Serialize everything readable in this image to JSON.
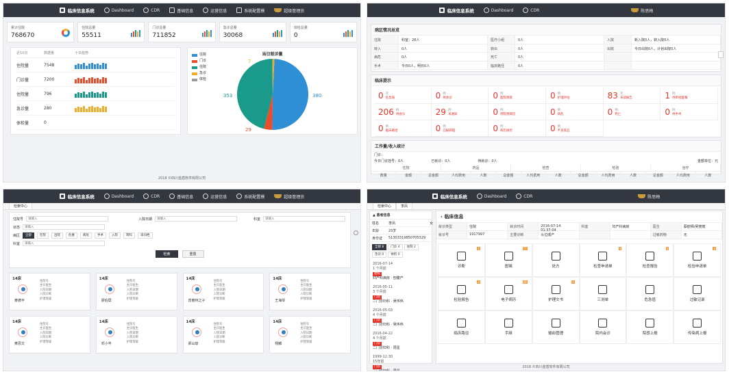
{
  "brand": "临床信息系统",
  "footer": "2018 ©四川蓝盾软件有限公司",
  "p1": {
    "nav": [
      "Dashboard",
      "CDR",
      "基础信息",
      "运营信息",
      "系统配置模"
    ],
    "user": "超级管理员",
    "stats": [
      {
        "label": "累计住院",
        "value": "768670"
      },
      {
        "label": "住院总量",
        "value": "55511"
      },
      {
        "label": "门诊总量",
        "value": "711852"
      },
      {
        "label": "急诊总量",
        "value": "30068"
      },
      {
        "label": "体检总量",
        "value": "0"
      }
    ],
    "list_head": [
      "近10日",
      "数据量",
      "十日趋势"
    ],
    "list_rows": [
      {
        "name": "住院量",
        "count": "7548",
        "color": "#2f8fd6"
      },
      {
        "name": "门诊量",
        "count": "7200",
        "color": "#e84d2c"
      },
      {
        "name": "住院量",
        "count": "796",
        "color": "#1a9a8a"
      },
      {
        "name": "急诊量",
        "count": "280",
        "color": "#f0ad2b"
      },
      {
        "name": "体检量",
        "count": "0",
        "color": "#999999"
      }
    ],
    "pie_title": "当日就诊量",
    "legend": [
      "住院",
      "门诊",
      "住院",
      "急诊",
      "体检"
    ],
    "pie_labels": {
      "a": "380",
      "b": "353",
      "c": "29",
      "d": "7"
    }
  },
  "chart_data": {
    "type": "pie",
    "title": "当日就诊量",
    "categories": [
      "住院",
      "门诊",
      "住院",
      "急诊",
      "体检"
    ],
    "values": [
      380,
      29,
      353,
      7,
      0
    ],
    "colors": [
      "#2f8fd6",
      "#e84d2c",
      "#1a9a8a",
      "#f0ad2b",
      "#999999"
    ]
  },
  "p2": {
    "nav": [
      "Dashboard",
      "CDR"
    ],
    "user": "陈思梅",
    "sec1": "病区情况总览",
    "info": [
      [
        "住院",
        "科室：28人",
        "医疗小组",
        "0人",
        "入院",
        "新入院0人，转入院0人"
      ],
      [
        "转入",
        "0人",
        "转出",
        "0人",
        "出院",
        "今日出院0人，计划出院0人"
      ],
      [
        "病危",
        "0人",
        "死亡",
        "0人",
        "",
        ""
      ],
      [
        "手术",
        "今日0人，明日0人",
        "临床路径",
        "0人",
        "",
        ""
      ]
    ],
    "sec2": "临床提示",
    "tips": [
      {
        "n": "0",
        "a": "次",
        "b": "危急值"
      },
      {
        "n": "0",
        "a": "例",
        "b": "待会诊"
      },
      {
        "n": "0",
        "a": "例",
        "b": "医院感染"
      },
      {
        "n": "0",
        "a": "例",
        "b": "护理评估"
      },
      {
        "n": "83",
        "a": "次",
        "b": "未读报告"
      },
      {
        "n": "1",
        "a": "例",
        "b": "待审批医嘱"
      },
      {
        "n": "206",
        "a": "例",
        "b": "待会诊"
      },
      {
        "n": "29",
        "a": "例",
        "b": "未通知"
      },
      {
        "n": "0",
        "a": "例",
        "b": "待院感病历"
      },
      {
        "n": "0",
        "a": "例",
        "b": "病危"
      },
      {
        "n": "0",
        "a": "例",
        "b": "死亡"
      },
      {
        "n": "0",
        "a": "例",
        "b": "待手术"
      },
      {
        "n": "0",
        "a": "例",
        "b": "临床路径"
      },
      {
        "n": "0",
        "a": "例",
        "b": "已报病理"
      },
      {
        "n": "0",
        "a": "例",
        "b": "病历质控"
      },
      {
        "n": "0",
        "a": "例",
        "b": "不良反应"
      }
    ],
    "sec3": "工作量/收入统计",
    "w_line1": "门诊：",
    "w_line2a": "今日门诊挂号：0人",
    "w_line2b": "已就诊：0人",
    "w_line2c": "待就诊：0人",
    "w_line2d": "金额单位：元",
    "w_groups": [
      "住院",
      "药品",
      "检查",
      "检验",
      "治疗"
    ],
    "w_cols": [
      "数量",
      "金额",
      "总金额",
      "人均费用",
      "人数",
      "总金额",
      "人均费用",
      "人数",
      "总金额",
      "人均费用",
      "人数",
      "总金额",
      "人均费用",
      "人数"
    ]
  },
  "p3": {
    "nav": [
      "Dashboard",
      "CDR",
      "基础信息",
      "运营信息",
      "系统配置模"
    ],
    "user": "超级管理员",
    "tab": "检索中心",
    "f_labels": [
      "住院号",
      "入院日期",
      "科室",
      "状态",
      "病区"
    ],
    "f_place": "请输入",
    "chips": [
      "全部",
      "在院",
      "出院",
      "危重",
      "病危",
      "手术",
      "入院",
      "转科",
      "未归档"
    ],
    "btn_search": "检索",
    "btn_reset": "重置",
    "beds": [
      {
        "no": "14床",
        "name": "黄德平"
      },
      {
        "no": "14床",
        "name": "廖伯屏"
      },
      {
        "no": "14床",
        "name": "曾丽林之子"
      },
      {
        "no": "14床",
        "name": "王海琴"
      },
      {
        "no": "14床",
        "name": "黄思文"
      },
      {
        "no": "14床",
        "name": "邓小丰"
      },
      {
        "no": "14床",
        "name": "郑山琼"
      },
      {
        "no": "14床",
        "name": "杨麟"
      }
    ],
    "bed_lines": [
      "住院号",
      "主诊医生",
      "入院日期",
      "入院诊断",
      "护理等级"
    ]
  },
  "p4": {
    "user": "陈思梅",
    "nav": [
      "Dashboard",
      "CDR"
    ],
    "tabs": [
      "检索中心",
      "李凤"
    ],
    "side_title": "患者信息",
    "pinfo": [
      [
        "姓名",
        "李凤",
        "女"
      ],
      [
        "年龄",
        "23岁",
        ""
      ],
      [
        "身份证",
        "51303319850705329",
        ""
      ]
    ],
    "filters": [
      "全部 8",
      "门诊 4",
      "住院 2",
      "急诊 0",
      "体检 0"
    ],
    "timeline": [
      {
        "date": "2016-07-14",
        "ago": "1 个月前",
        "tag": "住院",
        "text": "妇产科病房 · 剖腹产"
      },
      {
        "date": "2016-05-11",
        "ago": "3 个月前",
        "tag": "门诊",
        "text": "二门诊妇科 · 吴伟伟"
      },
      {
        "date": "2016-05-03",
        "ago": "4 个月前",
        "tag": "门诊",
        "text": "二门诊妇科 · 吴伟伟"
      },
      {
        "date": "2016-04-22",
        "ago": "4 个月前",
        "tag": "门诊",
        "text": "二门诊妇科 · 周星"
      },
      {
        "date": "1999-12-30",
        "ago": "15年前",
        "tag": "门诊",
        "text": "二门诊妇科 · 周星"
      }
    ],
    "title": "临床信息",
    "grid": [
      [
        "就诊类型",
        "住院",
        "就诊时间",
        "2016-07-14 01:37:04",
        "科室",
        "妇产科病房",
        "医生",
        "蔡欧栖/吴丽丽"
      ],
      [
        "就诊号",
        "1917997",
        "主要诊断",
        "头位顺产",
        "",
        "",
        "过敏药物",
        "无"
      ]
    ],
    "tiles": [
      {
        "label": "诊断",
        "badge": "2"
      },
      {
        "label": "医嘱",
        "badge": "77"
      },
      {
        "label": "处方",
        "badge": ""
      },
      {
        "label": "检查申请单",
        "badge": "3"
      },
      {
        "label": "检查报告",
        "badge": "2"
      },
      {
        "label": "检验申请单",
        "badge": "3"
      },
      {
        "label": "检验报告",
        "badge": "3"
      },
      {
        "label": "电子病历",
        "badge": "20"
      },
      {
        "label": "护理文书",
        "badge": "1"
      },
      {
        "label": "三测单",
        "badge": ""
      },
      {
        "label": "危急值",
        "badge": ""
      },
      {
        "label": "过敏记录",
        "badge": ""
      },
      {
        "label": "临床路径",
        "badge": ""
      },
      {
        "label": "手麻",
        "badge": ""
      },
      {
        "label": "输血管理",
        "badge": ""
      },
      {
        "label": "院内会诊",
        "badge": ""
      },
      {
        "label": "院感上报",
        "badge": ""
      },
      {
        "label": "传染病上报",
        "badge": ""
      }
    ]
  }
}
